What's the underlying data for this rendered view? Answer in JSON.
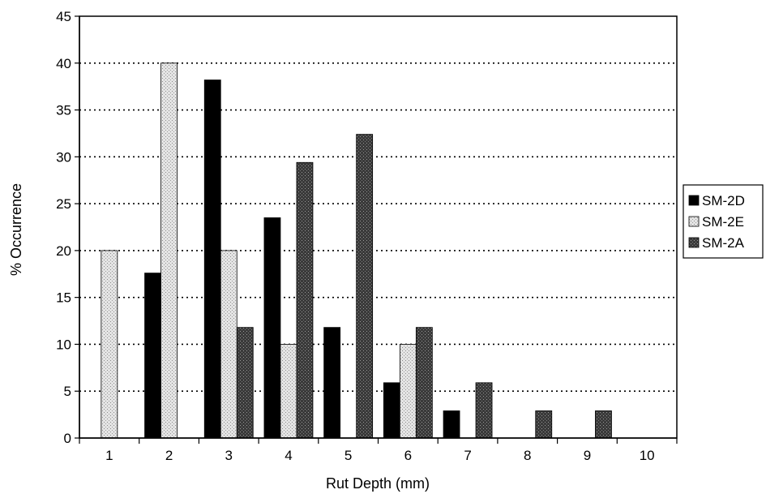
{
  "chart_data": {
    "type": "bar",
    "title": "",
    "xlabel": "Rut Depth (mm)",
    "ylabel": "% Occurrence",
    "categories": [
      "1",
      "2",
      "3",
      "4",
      "5",
      "6",
      "7",
      "8",
      "9",
      "10"
    ],
    "ylim": [
      0,
      45
    ],
    "yticks": [
      "0",
      "5",
      "10",
      "15",
      "20",
      "25",
      "30",
      "35",
      "40",
      "45"
    ],
    "grid": "horizontal dotted",
    "legend_position": "right",
    "series": [
      {
        "name": "SM-2D",
        "color": "#000000",
        "pattern": "solid",
        "values": [
          0,
          17.6,
          38.2,
          23.5,
          11.8,
          5.9,
          2.9,
          0,
          0,
          0
        ]
      },
      {
        "name": "SM-2E",
        "color": "#d6d6d6",
        "pattern": "light-stipple",
        "values": [
          20,
          40,
          20,
          10,
          0,
          10,
          0,
          0,
          0,
          0
        ]
      },
      {
        "name": "SM-2A",
        "color": "#444444",
        "pattern": "dark-stipple",
        "values": [
          0,
          0,
          11.8,
          29.4,
          32.4,
          11.8,
          5.9,
          2.9,
          2.9,
          0
        ]
      }
    ]
  }
}
